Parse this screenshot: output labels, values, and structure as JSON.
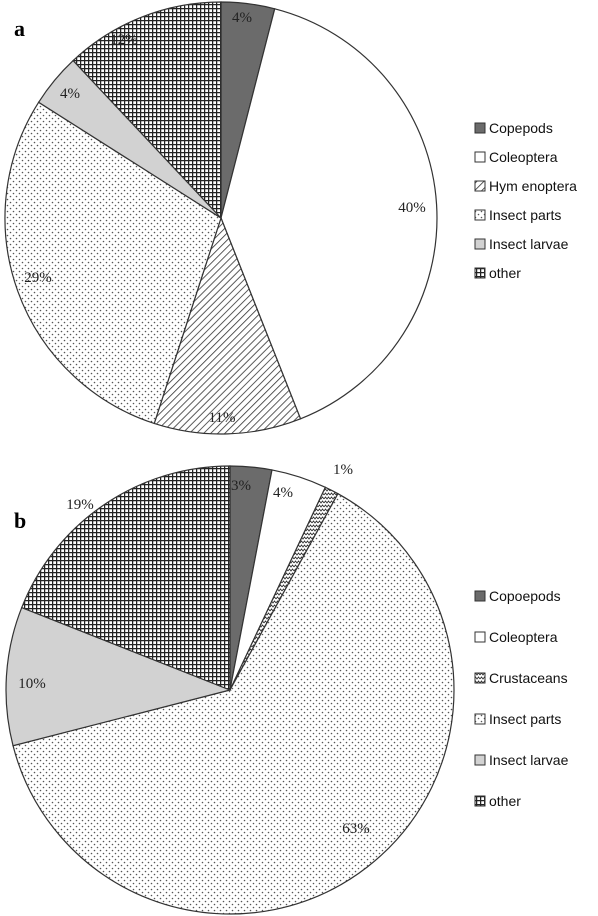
{
  "chart_data": [
    {
      "type": "pie",
      "panel": "a",
      "title": "",
      "slices": [
        {
          "label": "Copepods",
          "value": 4,
          "value_label": "4%",
          "fill": "dark",
          "color": "#6b6b6b"
        },
        {
          "label": "Coleoptera",
          "value": 40,
          "value_label": "40%",
          "fill": "white",
          "color": "#ffffff"
        },
        {
          "label": "Hym enoptera",
          "value": 11,
          "value_label": "11%",
          "fill": "diagonal-hatch",
          "color": "#ffffff"
        },
        {
          "label": "Insect parts",
          "value": 29,
          "value_label": "29%",
          "fill": "dots",
          "color": "#ffffff"
        },
        {
          "label": "Insect larvae",
          "value": 4,
          "value_label": "4%",
          "fill": "light-gray",
          "color": "#d2d2d2"
        },
        {
          "label": "other",
          "value": 12,
          "value_label": "12%",
          "fill": "grid",
          "color": "#ffffff"
        }
      ],
      "legend_position": "right"
    },
    {
      "type": "pie",
      "panel": "b",
      "title": "",
      "slices": [
        {
          "label": "Copoepods",
          "value": 3,
          "value_label": "3%",
          "fill": "dark",
          "color": "#6b6b6b"
        },
        {
          "label": "Coleoptera",
          "value": 4,
          "value_label": "4%",
          "fill": "white",
          "color": "#ffffff"
        },
        {
          "label": "Crustaceans",
          "value": 1,
          "value_label": "1%",
          "fill": "zigzag",
          "color": "#ffffff"
        },
        {
          "label": "Insect parts",
          "value": 63,
          "value_label": "63%",
          "fill": "dots",
          "color": "#ffffff"
        },
        {
          "label": "Insect larvae",
          "value": 10,
          "value_label": "10%",
          "fill": "light-gray",
          "color": "#d2d2d2"
        },
        {
          "label": "other",
          "value": 19,
          "value_label": "19%",
          "fill": "grid",
          "color": "#ffffff"
        }
      ],
      "legend_position": "right"
    }
  ]
}
